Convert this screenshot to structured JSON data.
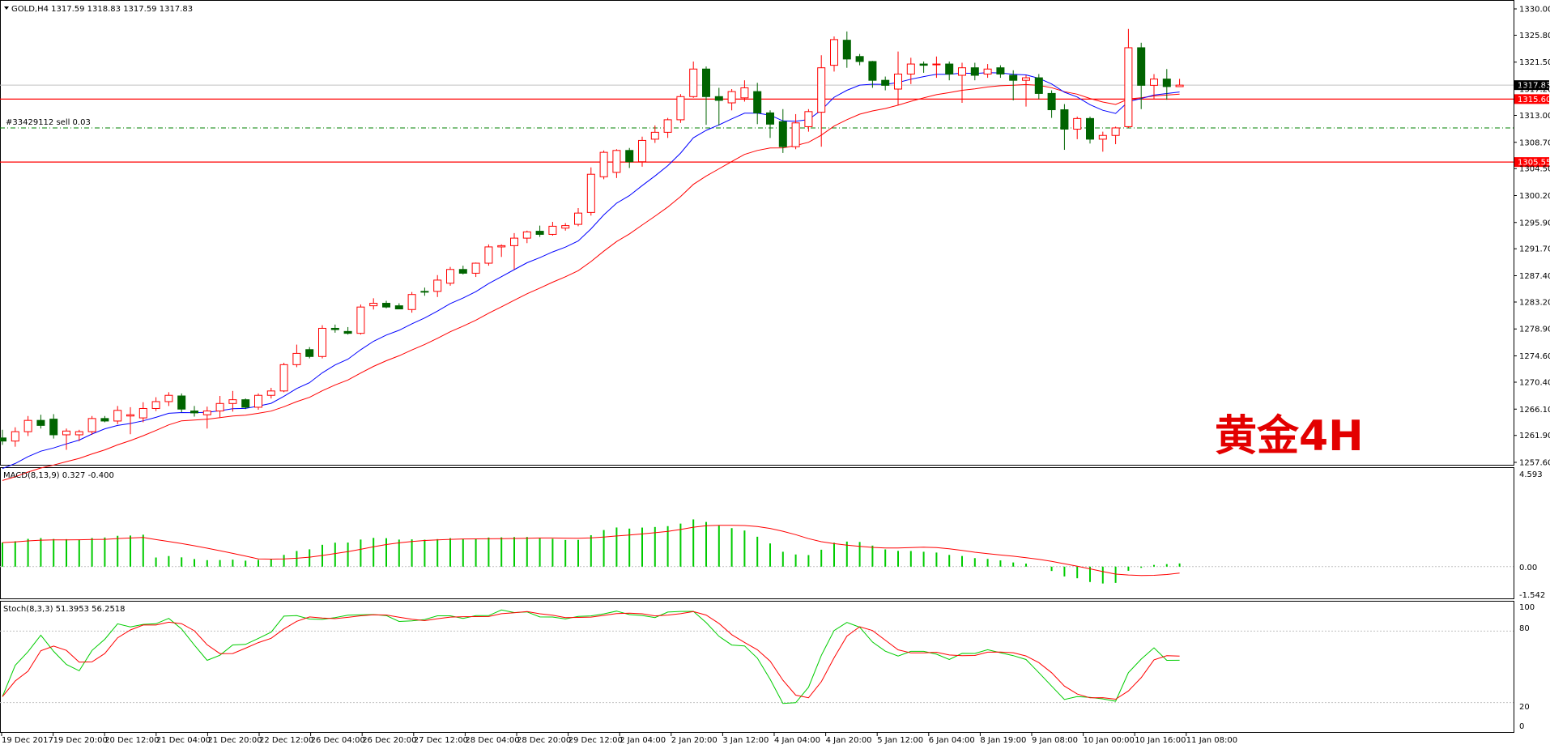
{
  "main": {
    "header": "GOLD,H4  1317.59 1318.83 1317.59 1317.83",
    "order_label": "#33429112 sell 0.03",
    "watermark": "黄金4H",
    "current_price_label": "1317.83",
    "levels": [
      {
        "price": 1315.6,
        "label": "1315.60",
        "color": "#ff0000"
      },
      {
        "price": 1305.55,
        "label": "1305.55",
        "color": "#ff0000"
      }
    ],
    "order_level": 1311.0,
    "price_ticks": [
      "1330.00",
      "1325.80",
      "1321.50",
      "1317.20",
      "1313.00",
      "1308.70",
      "1304.50",
      "1300.20",
      "1295.90",
      "1291.70",
      "1287.40",
      "1283.20",
      "1278.90",
      "1274.60",
      "1270.40",
      "1266.10",
      "1261.90",
      "1257.60"
    ]
  },
  "macd": {
    "header": "MACD(8,13,9) 0.327 -0.400",
    "ticks": [
      "4.593",
      "0.00",
      "-1.542"
    ]
  },
  "stoch": {
    "header": "Stoch(8,3,3) 51.3953 56.2518",
    "ticks": [
      "100",
      "80",
      "20",
      "0"
    ]
  },
  "time_labels": [
    "19 Dec 2017",
    "19 Dec 20:00",
    "20 Dec 12:00",
    "21 Dec 04:00",
    "21 Dec 20:00",
    "22 Dec 12:00",
    "26 Dec 04:00",
    "26 Dec 20:00",
    "27 Dec 12:00",
    "28 Dec 04:00",
    "28 Dec 20:00",
    "29 Dec 12:00",
    "2 Jan 04:00",
    "2 Jan 20:00",
    "3 Jan 12:00",
    "4 Jan 04:00",
    "4 Jan 20:00",
    "5 Jan 12:00",
    "6 Jan 04:00",
    "8 Jan 19:00",
    "9 Jan 08:00",
    "10 Jan 00:00",
    "10 Jan 16:00",
    "11 Jan 08:00"
  ],
  "colors": {
    "bull": "#ff0000",
    "bear": "#006400",
    "ma_fast": "#0000ff",
    "ma_slow": "#ff0000",
    "macd_hist": "#00cc00",
    "macd_signal": "#ff0000",
    "stoch_main": "#00cc00",
    "stoch_signal": "#ff0000"
  },
  "chart_data": {
    "type": "candlestick",
    "symbol": "GOLD",
    "timeframe": "H4",
    "ylim": [
      1257.6,
      1330.0
    ],
    "candles": [
      [
        1261.5,
        1262.8,
        1260.4,
        1261.0
      ],
      [
        1261.0,
        1263.2,
        1260.1,
        1262.5
      ],
      [
        1262.5,
        1265.0,
        1261.8,
        1264.3
      ],
      [
        1264.3,
        1265.2,
        1263.0,
        1263.5
      ],
      [
        1264.5,
        1265.3,
        1261.4,
        1262.0
      ],
      [
        1262.0,
        1263.0,
        1259.6,
        1262.6
      ],
      [
        1262.0,
        1262.8,
        1261.0,
        1262.5
      ],
      [
        1262.5,
        1265.0,
        1262.0,
        1264.6
      ],
      [
        1264.6,
        1265.0,
        1264.0,
        1264.2
      ],
      [
        1264.2,
        1266.6,
        1263.7,
        1265.9
      ],
      [
        1265.0,
        1266.4,
        1262.1,
        1265.2
      ],
      [
        1264.7,
        1267.2,
        1264.0,
        1266.2
      ],
      [
        1266.2,
        1268.0,
        1265.8,
        1267.3
      ],
      [
        1267.3,
        1268.8,
        1266.6,
        1268.3
      ],
      [
        1268.2,
        1268.6,
        1265.6,
        1266.1
      ],
      [
        1265.8,
        1266.6,
        1264.9,
        1265.5
      ],
      [
        1265.2,
        1266.5,
        1263.0,
        1265.8
      ],
      [
        1265.8,
        1268.2,
        1264.8,
        1267.0
      ],
      [
        1267.0,
        1269.0,
        1265.7,
        1267.6
      ],
      [
        1267.6,
        1267.8,
        1266.1,
        1266.4
      ],
      [
        1266.4,
        1268.6,
        1266.0,
        1268.3
      ],
      [
        1268.3,
        1269.5,
        1267.8,
        1269.0
      ],
      [
        1269.0,
        1273.5,
        1268.8,
        1273.2
      ],
      [
        1273.2,
        1276.4,
        1272.8,
        1275.0
      ],
      [
        1275.6,
        1276.0,
        1274.2,
        1274.5
      ],
      [
        1274.5,
        1279.5,
        1274.2,
        1279.0
      ],
      [
        1279.0,
        1279.6,
        1278.3,
        1278.8
      ],
      [
        1278.5,
        1279.2,
        1278.0,
        1278.2
      ],
      [
        1278.2,
        1282.8,
        1278.0,
        1282.4
      ],
      [
        1282.6,
        1283.8,
        1282.0,
        1283.0
      ],
      [
        1283.0,
        1283.4,
        1282.2,
        1282.4
      ],
      [
        1282.6,
        1283.0,
        1282.2,
        1282.1
      ],
      [
        1282.0,
        1284.8,
        1281.5,
        1284.4
      ],
      [
        1284.9,
        1285.5,
        1284.2,
        1284.8
      ],
      [
        1284.9,
        1287.5,
        1284.0,
        1286.7
      ],
      [
        1286.2,
        1288.8,
        1285.8,
        1288.4
      ],
      [
        1288.4,
        1289.0,
        1287.6,
        1287.8
      ],
      [
        1287.8,
        1289.5,
        1287.2,
        1289.4
      ],
      [
        1289.4,
        1292.4,
        1289.0,
        1292.0
      ],
      [
        1292.0,
        1292.4,
        1290.4,
        1292.2
      ],
      [
        1292.2,
        1294.2,
        1288.4,
        1293.4
      ],
      [
        1293.4,
        1294.6,
        1292.6,
        1294.4
      ],
      [
        1294.5,
        1295.4,
        1293.6,
        1294.0
      ],
      [
        1294.0,
        1296.0,
        1293.8,
        1295.3
      ],
      [
        1295.0,
        1295.8,
        1294.6,
        1295.4
      ],
      [
        1295.6,
        1298.2,
        1295.3,
        1297.4
      ],
      [
        1297.5,
        1304.7,
        1297.0,
        1303.6
      ],
      [
        1303.2,
        1307.4,
        1302.8,
        1307.1
      ],
      [
        1303.9,
        1307.6,
        1303.0,
        1307.4
      ],
      [
        1307.4,
        1307.8,
        1304.6,
        1305.6
      ],
      [
        1305.6,
        1309.6,
        1304.8,
        1309.0
      ],
      [
        1309.2,
        1311.4,
        1308.6,
        1310.3
      ],
      [
        1310.3,
        1312.6,
        1309.4,
        1312.3
      ],
      [
        1312.3,
        1316.4,
        1311.8,
        1316.0
      ],
      [
        1316.0,
        1321.6,
        1315.8,
        1320.4
      ],
      [
        1320.4,
        1320.8,
        1311.5,
        1316.0
      ],
      [
        1316.0,
        1317.4,
        1311.4,
        1315.4
      ],
      [
        1315.0,
        1317.2,
        1313.8,
        1316.8
      ],
      [
        1315.8,
        1318.6,
        1315.2,
        1317.4
      ],
      [
        1316.8,
        1318.2,
        1311.6,
        1313.4
      ],
      [
        1313.4,
        1313.8,
        1309.4,
        1311.6
      ],
      [
        1312.0,
        1314.0,
        1307.0,
        1308.0
      ],
      [
        1308.0,
        1313.2,
        1307.6,
        1311.8
      ],
      [
        1311.2,
        1314.0,
        1310.4,
        1313.6
      ],
      [
        1313.5,
        1322.6,
        1308.0,
        1320.6
      ],
      [
        1321.0,
        1325.6,
        1320.0,
        1325.1
      ],
      [
        1325.0,
        1326.4,
        1320.6,
        1322.0
      ],
      [
        1322.4,
        1322.8,
        1321.0,
        1321.6
      ],
      [
        1321.6,
        1321.7,
        1317.4,
        1318.6
      ],
      [
        1318.6,
        1319.2,
        1317.0,
        1317.8
      ],
      [
        1317.2,
        1323.2,
        1314.6,
        1319.6
      ],
      [
        1319.6,
        1322.2,
        1318.0,
        1321.2
      ],
      [
        1321.2,
        1321.6,
        1319.8,
        1321.0
      ],
      [
        1321.2,
        1322.4,
        1319.0,
        1321.2
      ],
      [
        1321.2,
        1321.6,
        1318.6,
        1319.6
      ],
      [
        1319.4,
        1321.4,
        1315.0,
        1320.6
      ],
      [
        1320.6,
        1321.4,
        1318.6,
        1319.4
      ],
      [
        1319.6,
        1321.2,
        1319.0,
        1320.4
      ],
      [
        1320.6,
        1321.0,
        1319.0,
        1319.6
      ],
      [
        1319.4,
        1320.2,
        1315.4,
        1318.6
      ],
      [
        1318.6,
        1319.4,
        1314.4,
        1319.0
      ],
      [
        1319.0,
        1319.6,
        1315.6,
        1316.5
      ],
      [
        1316.5,
        1317.0,
        1312.6,
        1313.9
      ],
      [
        1313.9,
        1314.8,
        1307.5,
        1310.8
      ],
      [
        1310.8,
        1312.8,
        1309.2,
        1312.5
      ],
      [
        1312.5,
        1312.8,
        1308.5,
        1309.2
      ],
      [
        1309.2,
        1310.4,
        1307.2,
        1309.8
      ],
      [
        1309.8,
        1311.2,
        1308.4,
        1311.0
      ],
      [
        1311.2,
        1326.8,
        1311.0,
        1323.8
      ],
      [
        1323.8,
        1324.6,
        1314.0,
        1317.8
      ],
      [
        1317.8,
        1319.6,
        1315.6,
        1318.8
      ],
      [
        1318.8,
        1320.4,
        1315.5,
        1317.6
      ],
      [
        1317.59,
        1318.83,
        1317.59,
        1317.83
      ]
    ]
  }
}
